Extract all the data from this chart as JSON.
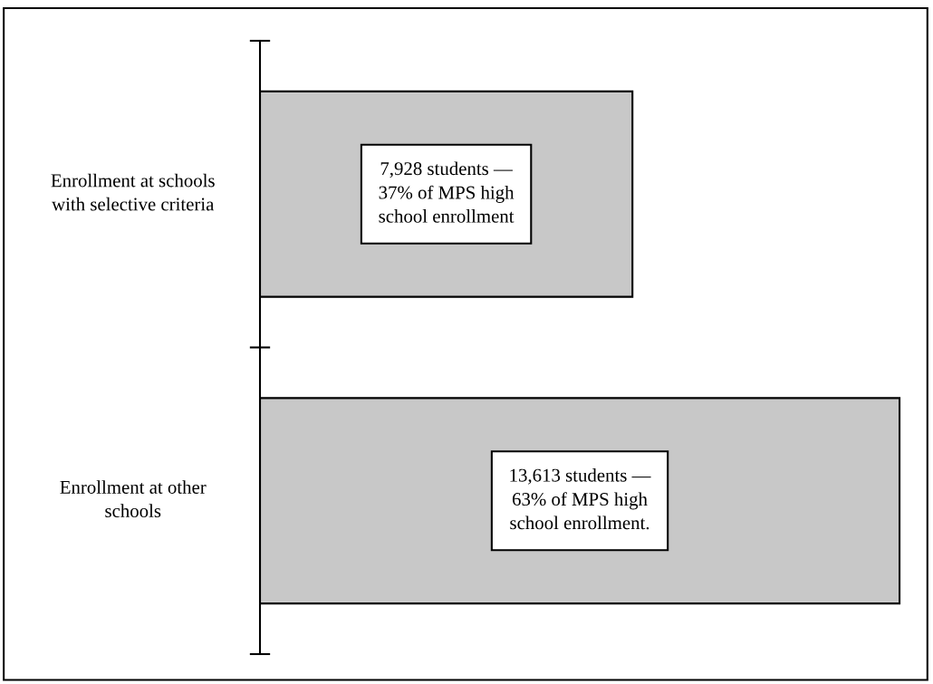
{
  "chart_data": {
    "type": "bar",
    "orientation": "horizontal",
    "categories": [
      "Enrollment at schools\nwith selective criteria",
      "Enrollment at other\nschools"
    ],
    "values": [
      7928,
      13613
    ],
    "value_labels": [
      "7,928 students —\n37% of MPS high\nschool enrollment",
      "13,613 students —\n63% of MPS high\nschool enrollment."
    ],
    "color": "#c8c8c8",
    "legend": false
  }
}
